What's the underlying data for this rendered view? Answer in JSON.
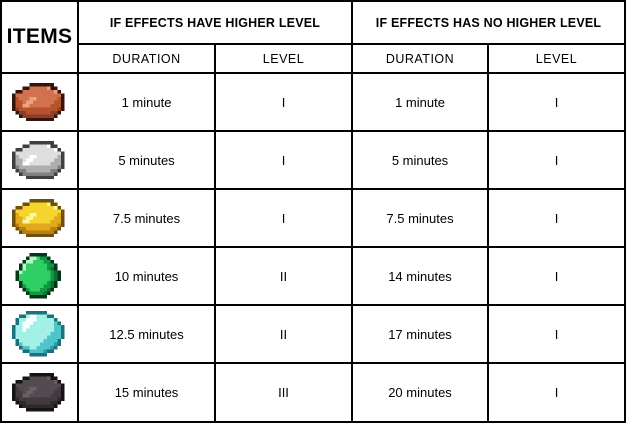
{
  "table": {
    "corner_header": "ITEMS",
    "group_headers": [
      "IF EFFECTS HAVE HIGHER LEVEL",
      "IF EFFECTS HAS NO HIGHER LEVEL"
    ],
    "sub_headers": [
      "DURATION",
      "LEVEL",
      "DURATION",
      "LEVEL"
    ],
    "rows": [
      {
        "icon": "copper-ingot-icon",
        "higher_duration": "1 minute",
        "higher_level": "I",
        "no_higher_duration": "1 minute",
        "no_higher_level": "I"
      },
      {
        "icon": "iron-ingot-icon",
        "higher_duration": "5 minutes",
        "higher_level": "I",
        "no_higher_duration": "5 minutes",
        "no_higher_level": "I"
      },
      {
        "icon": "gold-ingot-icon",
        "higher_duration": "7.5 minutes",
        "higher_level": "I",
        "no_higher_duration": "7.5 minutes",
        "no_higher_level": "I"
      },
      {
        "icon": "emerald-icon",
        "higher_duration": "10 minutes",
        "higher_level": "II",
        "no_higher_duration": "14 minutes",
        "no_higher_level": "I"
      },
      {
        "icon": "diamond-icon",
        "higher_duration": "12.5 minutes",
        "higher_level": "II",
        "no_higher_duration": "17 minutes",
        "no_higher_level": "I"
      },
      {
        "icon": "netherite-ingot-icon",
        "higher_duration": "15 minutes",
        "higher_level": "III",
        "no_higher_duration": "20 minutes",
        "no_higher_level": "I"
      }
    ],
    "colors": {
      "border": "#000000",
      "background": "#ffffff",
      "text": "#000000"
    }
  },
  "chart_data": {
    "type": "table",
    "title": "",
    "corner_header": "ITEMS",
    "column_groups": [
      "IF EFFECTS HAVE HIGHER LEVEL",
      "IF EFFECTS HAS NO HIGHER LEVEL"
    ],
    "columns": [
      "DURATION",
      "LEVEL",
      "DURATION",
      "LEVEL"
    ],
    "row_icons": [
      "copper-ingot",
      "iron-ingot",
      "gold-ingot",
      "emerald",
      "diamond",
      "netherite-ingot"
    ],
    "rows": [
      [
        "1 minute",
        "I",
        "1 minute",
        "I"
      ],
      [
        "5 minutes",
        "I",
        "5 minutes",
        "I"
      ],
      [
        "7.5 minutes",
        "I",
        "7.5 minutes",
        "I"
      ],
      [
        "10 minutes",
        "II",
        "14 minutes",
        "I"
      ],
      [
        "12.5 minutes",
        "II",
        "17 minutes",
        "I"
      ],
      [
        "15 minutes",
        "III",
        "20 minutes",
        "I"
      ]
    ],
    "layout": {
      "grid": "on",
      "header_style": "bold-top-row"
    }
  }
}
